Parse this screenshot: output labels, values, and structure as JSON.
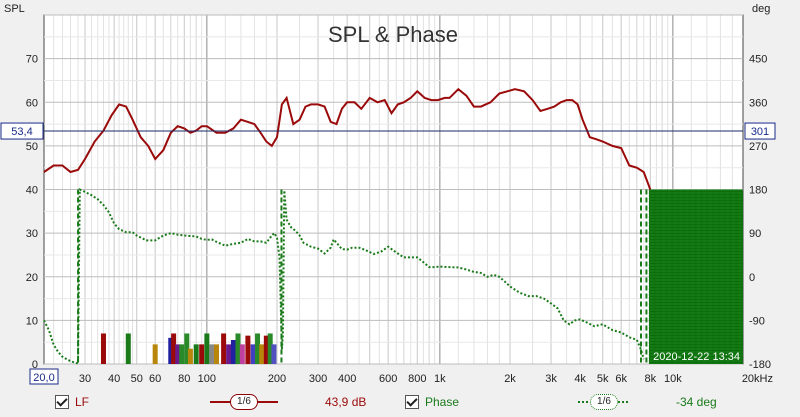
{
  "chart_data": {
    "type": "line",
    "title": "SPL & Phase",
    "ylabel_left": "SPL",
    "ylabel_right": "deg",
    "xunit": "Hz",
    "xscale": "log",
    "xlim": [
      20,
      20000
    ],
    "ylim": [
      0,
      80
    ],
    "ylim_right": [
      -180,
      540
    ],
    "y_ticks": [
      "0",
      "10",
      "20",
      "30",
      "40",
      "50",
      "60",
      "70"
    ],
    "y_ticks_right": [
      "-180",
      "-90",
      "0",
      "90",
      "180",
      "270",
      "360",
      "450"
    ],
    "x_ticks": [
      {
        "v": 20,
        "label": "20,0"
      },
      {
        "v": 30,
        "label": "30"
      },
      {
        "v": 40,
        "label": "40"
      },
      {
        "v": 50,
        "label": "50"
      },
      {
        "v": 60,
        "label": "60"
      },
      {
        "v": 80,
        "label": "80"
      },
      {
        "v": 100,
        "label": "100"
      },
      {
        "v": 200,
        "label": "200"
      },
      {
        "v": 300,
        "label": "300"
      },
      {
        "v": 400,
        "label": "400"
      },
      {
        "v": 600,
        "label": "600"
      },
      {
        "v": 800,
        "label": "800"
      },
      {
        "v": 1000,
        "label": "1k"
      },
      {
        "v": 2000,
        "label": "2k"
      },
      {
        "v": 3000,
        "label": "3k"
      },
      {
        "v": 4000,
        "label": "4k"
      },
      {
        "v": 5000,
        "label": "5k"
      },
      {
        "v": 6000,
        "label": "6k"
      },
      {
        "v": 8000,
        "label": "8k"
      },
      {
        "v": 10000,
        "label": "10k"
      },
      {
        "v": 20000,
        "label": "20kHz"
      }
    ],
    "cursor": {
      "value_left": "53,4",
      "value_right": "301",
      "x_label": "20,0"
    },
    "timestamp": "2020-12-22 13:34",
    "grid": true,
    "series": [
      {
        "name": "LF",
        "axis": "left",
        "color": "#9b0a0a",
        "style": "solid",
        "x": [
          20,
          22,
          24,
          26,
          28,
          30,
          33,
          36,
          39,
          42,
          45,
          48,
          52,
          56,
          60,
          65,
          70,
          75,
          80,
          85,
          90,
          95,
          100,
          110,
          120,
          130,
          140,
          150,
          160,
          170,
          180,
          190,
          200,
          210,
          220,
          235,
          250,
          265,
          280,
          300,
          320,
          340,
          360,
          380,
          400,
          430,
          460,
          500,
          540,
          580,
          620,
          660,
          700,
          750,
          800,
          860,
          920,
          980,
          1050,
          1100,
          1200,
          1300,
          1400,
          1500,
          1650,
          1800,
          1950,
          2100,
          2300,
          2500,
          2700,
          2900,
          3100,
          3300,
          3500,
          3700,
          3900,
          4100,
          4400,
          4700,
          5000,
          5500,
          6000,
          6500,
          7000,
          7500,
          8000
        ],
        "y": [
          44,
          45.5,
          45.5,
          44,
          44.5,
          47,
          51,
          53.5,
          57,
          59.5,
          59,
          56,
          52,
          50,
          47,
          49,
          53,
          54.5,
          54,
          53,
          53.5,
          54.5,
          54.5,
          53,
          53,
          54,
          56,
          55.5,
          55,
          53,
          51,
          50,
          52,
          59.5,
          61,
          55,
          56,
          59,
          59.5,
          59.5,
          59,
          55.5,
          55,
          58.5,
          60,
          60,
          58.5,
          61,
          60,
          60.5,
          57.5,
          59.5,
          60,
          61,
          62.5,
          61,
          60.5,
          60.5,
          61,
          61,
          63,
          61.5,
          59,
          59,
          60,
          62,
          62.5,
          63,
          62.5,
          60.5,
          58,
          58.5,
          59,
          60,
          60.5,
          60.5,
          59.5,
          56,
          52,
          51.5,
          51,
          50,
          49.5,
          45.5,
          45,
          44,
          40
        ]
      },
      {
        "name": "Phase",
        "axis": "right",
        "color": "#1a7a1a",
        "style": "dotted",
        "x": [
          20,
          21,
          22,
          23,
          24,
          25,
          26,
          27,
          28,
          28.5,
          30,
          32,
          34,
          36,
          38,
          40,
          42,
          45,
          48,
          50,
          55,
          60,
          65,
          70,
          75,
          80,
          85,
          90,
          95,
          100,
          105,
          110,
          120,
          130,
          140,
          150,
          160,
          170,
          180,
          190,
          195,
          200,
          205,
          210,
          212,
          215,
          220,
          230,
          240,
          250,
          260,
          280,
          300,
          320,
          340,
          350,
          360,
          380,
          400,
          420,
          450,
          480,
          520,
          560,
          600,
          650,
          700,
          750,
          800,
          850,
          900,
          950,
          1000,
          1100,
          1200,
          1300,
          1400,
          1500,
          1600,
          1700,
          1800,
          1900,
          2000,
          2200,
          2400,
          2600,
          2800,
          3000,
          3200,
          3400,
          3600,
          3800,
          4000,
          4300,
          4600,
          5000,
          5500,
          6000,
          6500,
          7000,
          7300,
          7500
        ],
        "y": [
          -90,
          -110,
          -140,
          -155,
          -165,
          -170,
          -174,
          -177,
          -179,
          180,
          175,
          168,
          160,
          148,
          133,
          110,
          98,
          92,
          92,
          85,
          75,
          75,
          85,
          90,
          87,
          85,
          84,
          83,
          78,
          76,
          77,
          72,
          64,
          68,
          70,
          78,
          73,
          73,
          70,
          85,
          90,
          80,
          40,
          -150,
          -120,
          178,
          118,
          102,
          95,
          85,
          70,
          62,
          58,
          48,
          60,
          77,
          70,
          57,
          56,
          60,
          60,
          55,
          47,
          52,
          62,
          50,
          40,
          40,
          40,
          30,
          20,
          20,
          21,
          20,
          19,
          15,
          10,
          8,
          0,
          4,
          0,
          -10,
          -20,
          -33,
          -40,
          -40,
          -45,
          -55,
          -65,
          -90,
          -98,
          -90,
          -88,
          -95,
          -102,
          -98,
          -110,
          -115,
          -125,
          -130,
          -150,
          -170
        ]
      }
    ],
    "bars": [
      {
        "x": 36,
        "y": 7,
        "color": "#9b0a0a"
      },
      {
        "x": 46,
        "y": 7,
        "color": "#1a7a1a"
      },
      {
        "x": 60,
        "y": 4.5,
        "color": "#b8860b"
      },
      {
        "x": 70,
        "y": 6,
        "color": "#2020a0"
      },
      {
        "x": 72,
        "y": 7,
        "color": "#9b0a0a"
      },
      {
        "x": 75,
        "y": 4.5,
        "color": "#6a1a8a"
      },
      {
        "x": 78,
        "y": 4.5,
        "color": "#2a8a2a"
      },
      {
        "x": 82,
        "y": 7,
        "color": "#2a8a2a"
      },
      {
        "x": 85,
        "y": 3.5,
        "color": "#b8860b"
      },
      {
        "x": 90,
        "y": 4.5,
        "color": "#1a7a1a"
      },
      {
        "x": 95,
        "y": 4.5,
        "color": "#9b0a0a"
      },
      {
        "x": 100,
        "y": 7,
        "color": "#1a7a1a"
      },
      {
        "x": 105,
        "y": 4.5,
        "color": "#888888"
      },
      {
        "x": 110,
        "y": 4.5,
        "color": "#b8860b"
      },
      {
        "x": 118,
        "y": 7,
        "color": "#9b0a0a"
      },
      {
        "x": 124,
        "y": 4.5,
        "color": "#6a1a8a"
      },
      {
        "x": 130,
        "y": 5.5,
        "color": "#2020a0"
      },
      {
        "x": 136,
        "y": 7,
        "color": "#2a8a2a"
      },
      {
        "x": 142,
        "y": 4.5,
        "color": "#c040a0"
      },
      {
        "x": 150,
        "y": 6.5,
        "color": "#9b0a0a"
      },
      {
        "x": 158,
        "y": 4.5,
        "color": "#4040c0"
      },
      {
        "x": 165,
        "y": 7,
        "color": "#2a8a2a"
      },
      {
        "x": 172,
        "y": 4.5,
        "color": "#b8860b"
      },
      {
        "x": 180,
        "y": 6.5,
        "color": "#9b0a0a"
      },
      {
        "x": 187,
        "y": 7,
        "color": "#2a8a2a"
      },
      {
        "x": 194,
        "y": 4.5,
        "color": "#5050c0"
      }
    ],
    "filled_region": {
      "x_from": 7900,
      "x_to": 20000,
      "y_from": 0,
      "y_to": 40,
      "color": "#0b6e0b"
    }
  },
  "legend": {
    "lf_label": "LF",
    "lf_smoothing": "1/6",
    "lf_value": "43,9 dB",
    "phase_label": "Phase",
    "phase_smoothing": "1/6",
    "phase_value": "-34 deg"
  }
}
